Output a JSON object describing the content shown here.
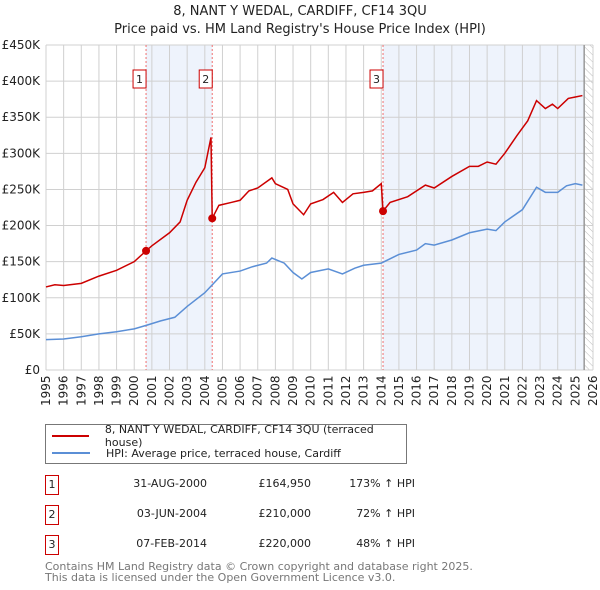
{
  "chart_data": {
    "type": "line",
    "title": "8, NANT Y WEDAL, CARDIFF, CF14 3QU",
    "subtitle": "Price paid vs. HM Land Registry's House Price Index (HPI)",
    "xlim": [
      1995,
      2026
    ],
    "ylim": [
      0,
      450000
    ],
    "y_ticks": [
      {
        "v": 0,
        "label": "£0"
      },
      {
        "v": 50000,
        "label": "£50K"
      },
      {
        "v": 100000,
        "label": "£100K"
      },
      {
        "v": 150000,
        "label": "£150K"
      },
      {
        "v": 200000,
        "label": "£200K"
      },
      {
        "v": 250000,
        "label": "£250K"
      },
      {
        "v": 300000,
        "label": "£300K"
      },
      {
        "v": 350000,
        "label": "£350K"
      },
      {
        "v": 400000,
        "label": "£400K"
      },
      {
        "v": 450000,
        "label": "£450K"
      }
    ],
    "x_ticks": [
      "1995",
      "1996",
      "1997",
      "1998",
      "1999",
      "2000",
      "2001",
      "2002",
      "2003",
      "2004",
      "2005",
      "2006",
      "2007",
      "2008",
      "2009",
      "2010",
      "2011",
      "2012",
      "2013",
      "2014",
      "2015",
      "2016",
      "2017",
      "2018",
      "2019",
      "2020",
      "2021",
      "2022",
      "2023",
      "2024",
      "2025",
      "2026"
    ],
    "grid": true,
    "shaded_ranges": [
      [
        2000.67,
        2004.42
      ],
      [
        2014.1,
        2025.5
      ]
    ],
    "forecast_from": 2025.5,
    "series": [
      {
        "name": "8, NANT Y WEDAL, CARDIFF, CF14 3QU (terraced house)",
        "color": "#cc0000",
        "x": [
          1995,
          1995.5,
          1996,
          1997,
          1998,
          1999,
          2000,
          2000.67,
          2001,
          2002,
          2002.6,
          2003,
          2003.5,
          2004,
          2004.35,
          2004.42,
          2004.8,
          2005.5,
          2006,
          2006.5,
          2007,
          2007.8,
          2008,
          2008.7,
          2009,
          2009.6,
          2010,
          2010.7,
          2011.3,
          2011.8,
          2012.4,
          2013,
          2013.5,
          2014,
          2014.1,
          2014.5,
          2015.5,
          2016.5,
          2017,
          2018,
          2019,
          2019.5,
          2020,
          2020.5,
          2021,
          2021.7,
          2022.3,
          2022.8,
          2023.3,
          2023.7,
          2024,
          2024.6,
          2025,
          2025.4
        ],
        "y": [
          115000,
          118000,
          117000,
          120000,
          130000,
          138000,
          150000,
          164950,
          172000,
          190000,
          205000,
          235000,
          260000,
          280000,
          322000,
          210000,
          228000,
          232000,
          235000,
          248000,
          252000,
          266000,
          258000,
          250000,
          230000,
          215000,
          230000,
          236000,
          246000,
          232000,
          244000,
          246000,
          248000,
          258000,
          220000,
          232000,
          240000,
          256000,
          252000,
          268000,
          282000,
          282000,
          288000,
          285000,
          300000,
          325000,
          345000,
          373000,
          362000,
          368000,
          362000,
          376000,
          378000,
          380000
        ]
      },
      {
        "name": "HPI: Average price, terraced house, Cardiff",
        "color": "#5b8fd6",
        "x": [
          1995,
          1996,
          1997,
          1998,
          1999,
          2000,
          2000.7,
          2001.5,
          2002.3,
          2003,
          2004,
          2004.5,
          2005,
          2006,
          2006.7,
          2007.5,
          2007.8,
          2008.5,
          2009,
          2009.5,
          2010,
          2011,
          2011.8,
          2012.5,
          2013,
          2014,
          2015,
          2016,
          2016.5,
          2017,
          2018,
          2019,
          2020,
          2020.5,
          2021,
          2022,
          2022.8,
          2023.3,
          2024,
          2024.5,
          2025,
          2025.4
        ],
        "y": [
          42000,
          43000,
          46000,
          50000,
          53000,
          57000,
          62000,
          68000,
          73000,
          88000,
          107000,
          120000,
          133000,
          137000,
          143000,
          148000,
          155000,
          148000,
          135000,
          126000,
          135000,
          140000,
          133000,
          141000,
          145000,
          148000,
          160000,
          166000,
          175000,
          173000,
          180000,
          190000,
          195000,
          193000,
          205000,
          222000,
          253000,
          246000,
          246000,
          255000,
          258000,
          256000
        ]
      }
    ],
    "sales": [
      {
        "label": "1",
        "x": 2000.67,
        "y": 164950,
        "date": "31-AUG-2000",
        "price": "£164,950",
        "hpi": "173% ↑ HPI"
      },
      {
        "label": "2",
        "x": 2004.42,
        "y": 210000,
        "date": "03-JUN-2004",
        "price": "£210,000",
        "hpi": "72% ↑ HPI"
      },
      {
        "label": "3",
        "x": 2014.1,
        "y": 220000,
        "date": "07-FEB-2014",
        "price": "£220,000",
        "hpi": "48% ↑ HPI"
      }
    ]
  },
  "footer": [
    "Contains HM Land Registry data © Crown copyright and database right 2025.",
    "This data is licensed under the Open Government Licence v3.0."
  ]
}
